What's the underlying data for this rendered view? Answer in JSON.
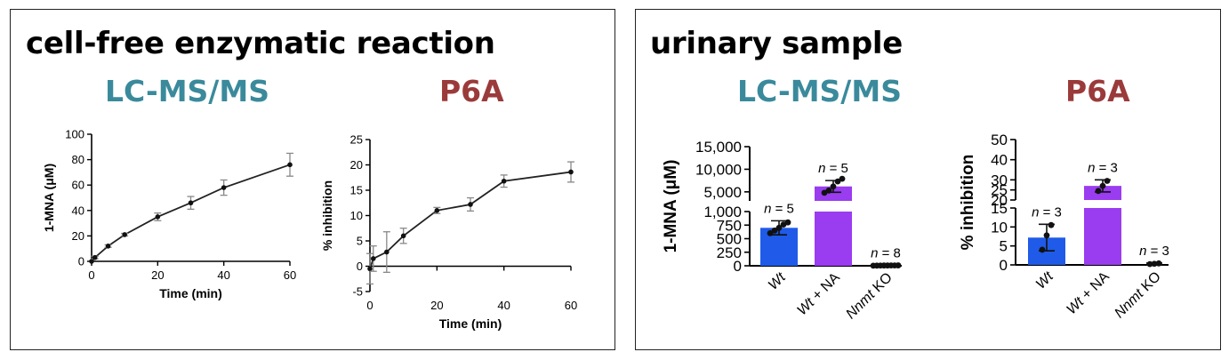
{
  "colors": {
    "lcms": "#3a8a9c",
    "p6a": "#9b3a3a",
    "wt_bar": "#1f5be8",
    "wt_na_bar": "#9a3cf0",
    "axis": "#000000",
    "curve": "#222222",
    "errorbar": "#888888"
  },
  "left_panel": {
    "title": "cell-free enzymatic reaction",
    "method_1": "LC-MS/MS",
    "method_2": "P6A"
  },
  "right_panel": {
    "title": "urinary sample",
    "method_1": "LC-MS/MS",
    "method_2": "P6A"
  },
  "chart_data": [
    {
      "id": "cellfree_lcms",
      "type": "line",
      "xlabel": "Time (min)",
      "ylabel": "1-MNA (μM)",
      "xlim": [
        0,
        60
      ],
      "ylim": [
        0,
        100
      ],
      "xticks": [
        "0",
        "20",
        "40",
        "60"
      ],
      "yticks": [
        "0",
        "20",
        "40",
        "60",
        "80",
        "100"
      ],
      "x": [
        0,
        1,
        5,
        10,
        20,
        30,
        40,
        60
      ],
      "y": [
        0,
        3,
        12,
        21,
        35,
        46,
        58,
        76
      ],
      "err": [
        0,
        1,
        1,
        1,
        3,
        5,
        6,
        9
      ]
    },
    {
      "id": "cellfree_p6a",
      "type": "line",
      "xlabel": "Time (min)",
      "ylabel": "% inhibition",
      "xlim": [
        0,
        60
      ],
      "ylim": [
        -5,
        25
      ],
      "xticks": [
        "0",
        "20",
        "40",
        "60"
      ],
      "yticks": [
        "-5",
        "0",
        "5",
        "10",
        "15",
        "20",
        "25"
      ],
      "x": [
        0,
        1,
        5,
        10,
        20,
        30,
        40,
        60
      ],
      "y": [
        -0.5,
        1.5,
        2.8,
        6,
        11,
        12.2,
        16.8,
        18.6
      ],
      "err": [
        3,
        2.5,
        4,
        1.5,
        0.6,
        1.3,
        1.2,
        2
      ]
    },
    {
      "id": "urine_lcms",
      "type": "bar",
      "ylabel": "1-MNA (μM)",
      "categories": [
        "Wt",
        "Wt + NA",
        "Nnmt KO"
      ],
      "category_italic": [
        "Wt",
        "Wt",
        "Nnmt"
      ],
      "category_rest": [
        "",
        " + NA",
        " KO"
      ],
      "n_labels": [
        "n = 5",
        "n = 5",
        "n = 8"
      ],
      "values": [
        700,
        6200,
        5
      ],
      "err": [
        130,
        1300,
        3
      ],
      "points": [
        [
          600,
          650,
          700,
          760,
          800
        ],
        [
          4800,
          5300,
          6200,
          7300,
          7900
        ],
        [
          2,
          3,
          4,
          5,
          5,
          6,
          6,
          7
        ]
      ],
      "y_axis_broken": true,
      "lower_ylim": [
        0,
        1000
      ],
      "lower_yticks": [
        "0",
        "250",
        "500",
        "750",
        "1,000"
      ],
      "upper_ylim": [
        3000,
        15000
      ],
      "upper_yticks": [
        "5,000",
        "10,000",
        "15,000"
      ]
    },
    {
      "id": "urine_p6a",
      "type": "bar",
      "ylabel": "% inhibition",
      "categories": [
        "Wt",
        "Wt + NA",
        "Nnmt KO"
      ],
      "category_italic": [
        "Wt",
        "Wt",
        "Nnmt"
      ],
      "category_rest": [
        "",
        " + NA",
        " KO"
      ],
      "n_labels": [
        "n = 3",
        "n = 3",
        "n = 3"
      ],
      "values": [
        7.2,
        27,
        0.3
      ],
      "err": [
        3.5,
        3,
        0.2
      ],
      "points": [
        [
          4,
          7.8,
          10.5
        ],
        [
          24.5,
          27,
          29.5
        ],
        [
          0.2,
          0.3,
          0.4
        ]
      ],
      "y_axis_broken": true,
      "lower_ylim": [
        0,
        15
      ],
      "lower_yticks": [
        "0",
        "5",
        "10",
        "15"
      ],
      "upper_ylim": [
        20,
        50
      ],
      "upper_yticks": [
        "20",
        "25",
        "30",
        "40",
        "50"
      ]
    }
  ]
}
